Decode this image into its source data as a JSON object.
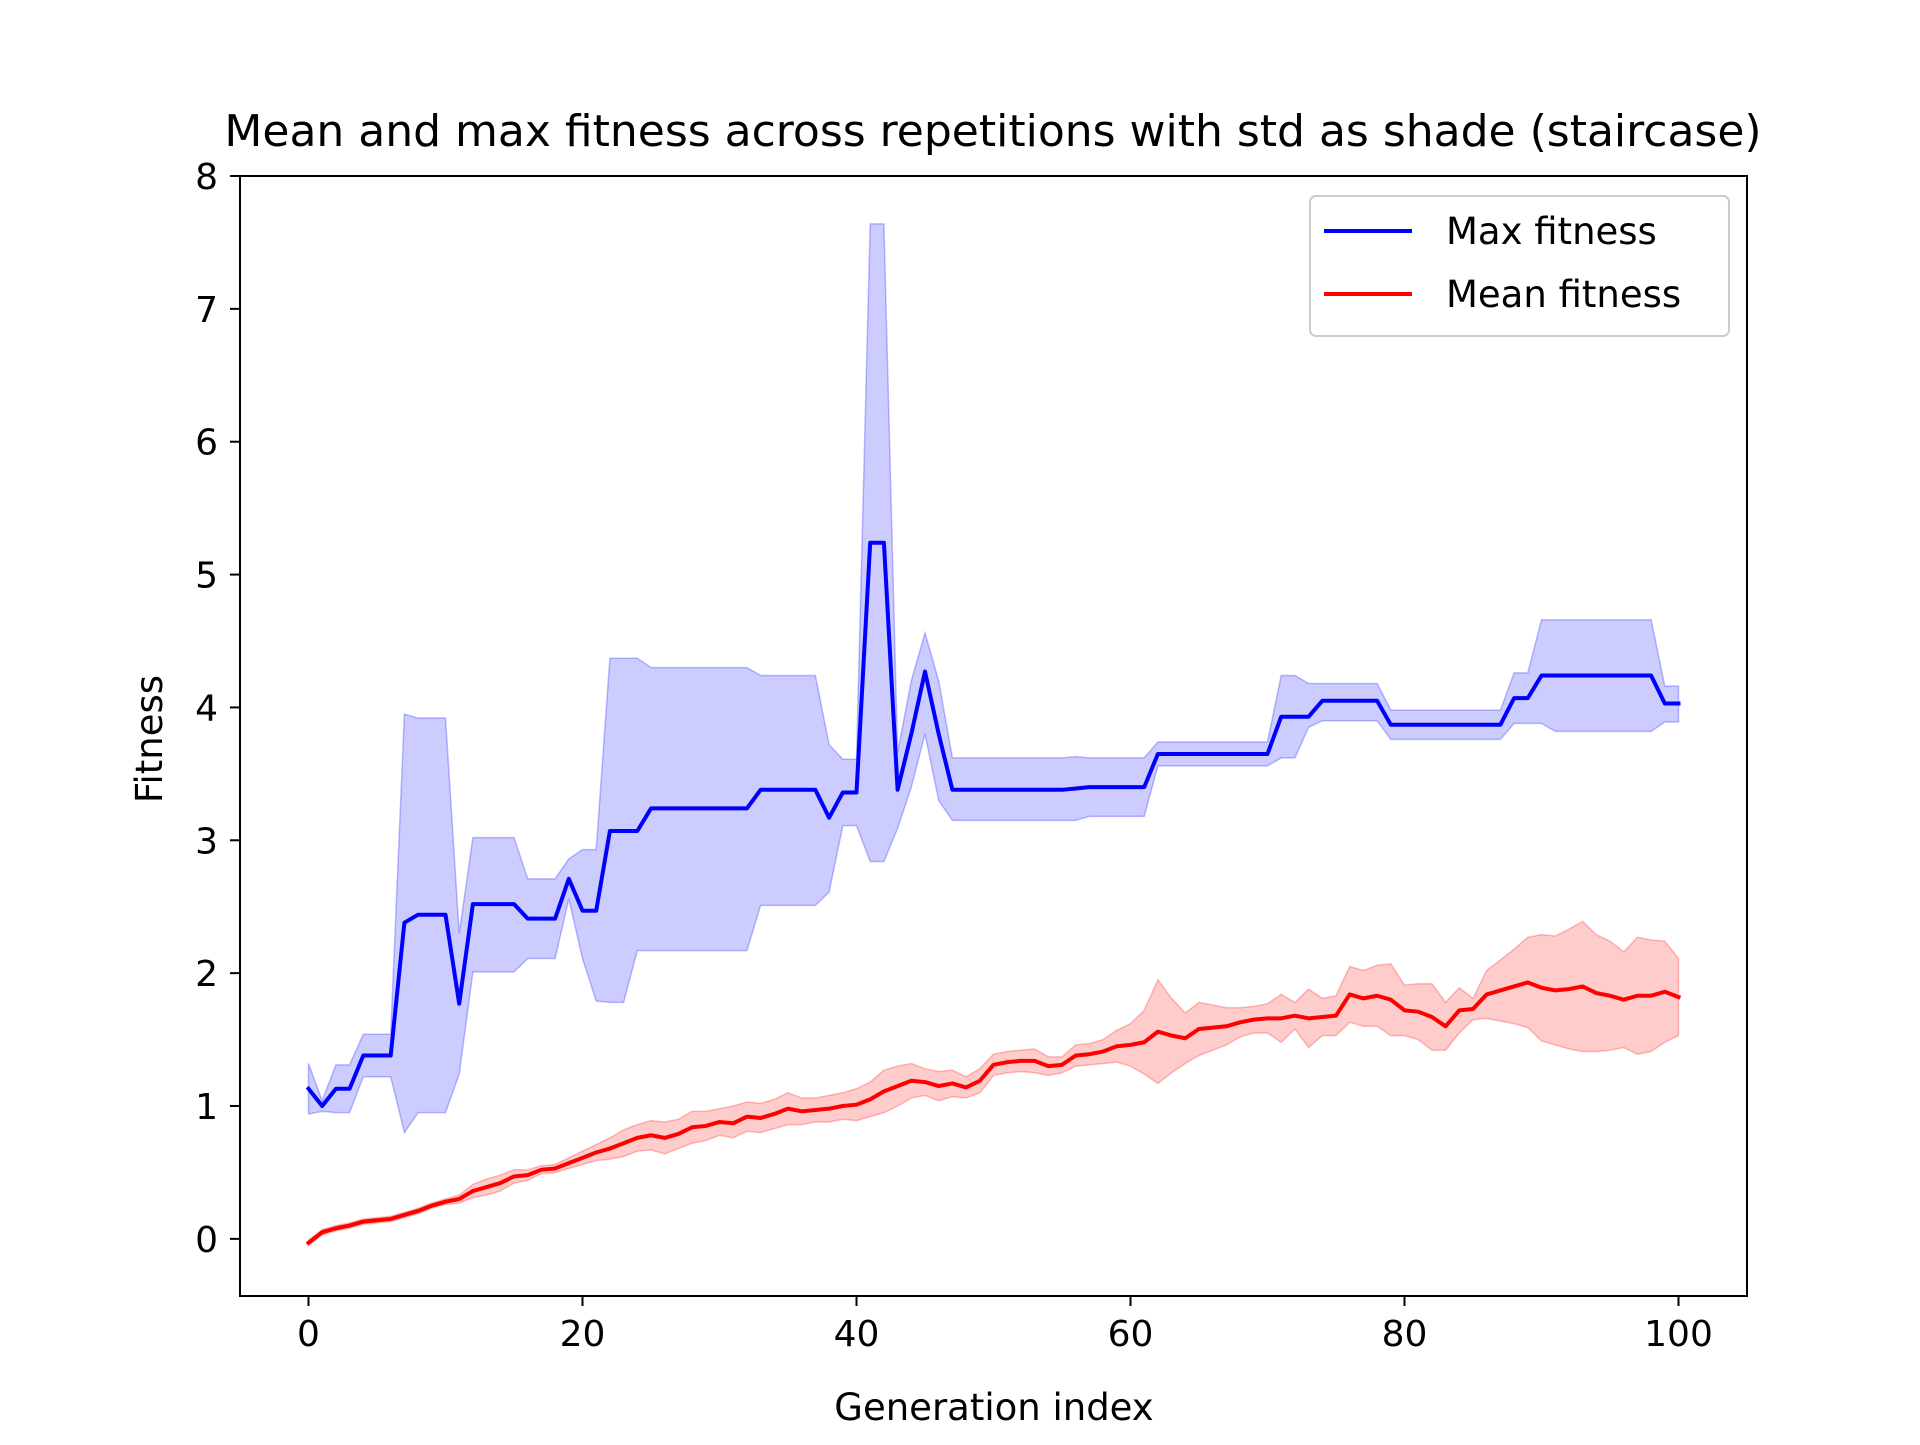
{
  "chart_data": {
    "type": "line",
    "title": "Mean and max fitness across repetitions with std as shade (staircase)",
    "xlabel": "Generation index",
    "ylabel": "Fitness",
    "xlim": [
      -5,
      105
    ],
    "ylim": [
      -0.43,
      8
    ],
    "x_ticks": [
      0,
      20,
      40,
      60,
      80,
      100
    ],
    "y_ticks": [
      0,
      1,
      2,
      3,
      4,
      5,
      6,
      7,
      8
    ],
    "grid": false,
    "legend_position": "upper right",
    "x": [
      0,
      1,
      2,
      3,
      4,
      5,
      6,
      7,
      8,
      9,
      10,
      11,
      12,
      13,
      14,
      15,
      16,
      17,
      18,
      19,
      20,
      21,
      22,
      23,
      24,
      25,
      26,
      27,
      28,
      29,
      30,
      31,
      32,
      33,
      34,
      35,
      36,
      37,
      38,
      39,
      40,
      41,
      42,
      43,
      44,
      45,
      46,
      47,
      48,
      49,
      50,
      51,
      52,
      53,
      54,
      55,
      56,
      57,
      58,
      59,
      60,
      61,
      62,
      63,
      64,
      65,
      66,
      67,
      68,
      69,
      70,
      71,
      72,
      73,
      74,
      75,
      76,
      77,
      78,
      79,
      80,
      81,
      82,
      83,
      84,
      85,
      86,
      87,
      88,
      89,
      90,
      91,
      92,
      93,
      94,
      95,
      96,
      97,
      98,
      99,
      100
    ],
    "series": [
      {
        "name": "Max fitness",
        "color": "#0000ff",
        "shade_color": "#0000ff",
        "values": [
          1.13,
          1.0,
          1.13,
          1.13,
          1.38,
          1.38,
          1.38,
          2.38,
          2.44,
          2.44,
          2.44,
          1.77,
          2.52,
          2.52,
          2.52,
          2.52,
          2.41,
          2.41,
          2.41,
          2.71,
          2.47,
          2.47,
          3.07,
          3.07,
          3.07,
          3.24,
          3.24,
          3.24,
          3.24,
          3.24,
          3.24,
          3.24,
          3.24,
          3.38,
          3.38,
          3.38,
          3.38,
          3.38,
          3.17,
          3.36,
          3.36,
          5.24,
          5.24,
          3.38,
          3.8,
          4.27,
          3.8,
          3.38,
          3.38,
          3.38,
          3.38,
          3.38,
          3.38,
          3.38,
          3.38,
          3.38,
          3.39,
          3.4,
          3.4,
          3.4,
          3.4,
          3.4,
          3.65,
          3.65,
          3.65,
          3.65,
          3.65,
          3.65,
          3.65,
          3.65,
          3.65,
          3.93,
          3.93,
          3.93,
          4.05,
          4.05,
          4.05,
          4.05,
          4.05,
          3.87,
          3.87,
          3.87,
          3.87,
          3.87,
          3.87,
          3.87,
          3.87,
          3.87,
          4.07,
          4.07,
          4.24,
          4.24,
          4.24,
          4.24,
          4.24,
          4.24,
          4.24,
          4.24,
          4.24,
          4.03,
          4.03
        ],
        "lower": [
          0.94,
          0.96,
          0.95,
          0.95,
          1.22,
          1.22,
          1.22,
          0.8,
          0.95,
          0.95,
          0.95,
          1.24,
          2.01,
          2.01,
          2.01,
          2.01,
          2.11,
          2.11,
          2.11,
          2.56,
          2.11,
          1.79,
          1.78,
          1.78,
          2.17,
          2.17,
          2.17,
          2.17,
          2.17,
          2.17,
          2.17,
          2.17,
          2.17,
          2.51,
          2.51,
          2.51,
          2.51,
          2.51,
          2.61,
          3.11,
          3.11,
          2.84,
          2.84,
          3.09,
          3.4,
          3.8,
          3.3,
          3.15,
          3.15,
          3.15,
          3.15,
          3.15,
          3.15,
          3.15,
          3.15,
          3.15,
          3.15,
          3.18,
          3.18,
          3.18,
          3.18,
          3.18,
          3.56,
          3.56,
          3.56,
          3.56,
          3.56,
          3.56,
          3.56,
          3.56,
          3.56,
          3.62,
          3.62,
          3.85,
          3.9,
          3.9,
          3.9,
          3.9,
          3.9,
          3.76,
          3.76,
          3.76,
          3.76,
          3.76,
          3.76,
          3.76,
          3.76,
          3.76,
          3.88,
          3.88,
          3.88,
          3.82,
          3.82,
          3.82,
          3.82,
          3.82,
          3.82,
          3.82,
          3.82,
          3.89,
          3.89
        ],
        "upper": [
          1.32,
          1.04,
          1.31,
          1.31,
          1.54,
          1.54,
          1.54,
          3.95,
          3.92,
          3.92,
          3.92,
          2.3,
          3.02,
          3.02,
          3.02,
          3.02,
          2.71,
          2.71,
          2.71,
          2.86,
          2.93,
          2.93,
          4.37,
          4.37,
          4.37,
          4.3,
          4.3,
          4.3,
          4.3,
          4.3,
          4.3,
          4.3,
          4.3,
          4.24,
          4.24,
          4.24,
          4.24,
          4.24,
          3.72,
          3.61,
          3.61,
          7.64,
          7.64,
          3.66,
          4.2,
          4.56,
          4.2,
          3.62,
          3.62,
          3.62,
          3.62,
          3.62,
          3.62,
          3.62,
          3.62,
          3.62,
          3.63,
          3.62,
          3.62,
          3.62,
          3.62,
          3.62,
          3.74,
          3.74,
          3.74,
          3.74,
          3.74,
          3.74,
          3.74,
          3.74,
          3.74,
          4.24,
          4.24,
          4.18,
          4.18,
          4.18,
          4.18,
          4.18,
          4.18,
          3.98,
          3.98,
          3.98,
          3.98,
          3.98,
          3.98,
          3.98,
          3.98,
          3.98,
          4.26,
          4.26,
          4.66,
          4.66,
          4.66,
          4.66,
          4.66,
          4.66,
          4.66,
          4.66,
          4.66,
          4.16,
          4.16
        ]
      },
      {
        "name": "Mean fitness",
        "color": "#ff0000",
        "shade_color": "#ff0000",
        "values": [
          -0.03,
          0.05,
          0.08,
          0.1,
          0.13,
          0.14,
          0.15,
          0.18,
          0.21,
          0.25,
          0.28,
          0.3,
          0.36,
          0.39,
          0.42,
          0.47,
          0.48,
          0.52,
          0.53,
          0.57,
          0.61,
          0.65,
          0.68,
          0.72,
          0.76,
          0.78,
          0.76,
          0.79,
          0.84,
          0.85,
          0.88,
          0.87,
          0.92,
          0.91,
          0.94,
          0.98,
          0.96,
          0.97,
          0.98,
          1.0,
          1.01,
          1.05,
          1.11,
          1.15,
          1.19,
          1.18,
          1.15,
          1.17,
          1.14,
          1.19,
          1.31,
          1.33,
          1.34,
          1.34,
          1.3,
          1.31,
          1.38,
          1.39,
          1.41,
          1.45,
          1.46,
          1.48,
          1.56,
          1.53,
          1.51,
          1.58,
          1.59,
          1.6,
          1.63,
          1.65,
          1.66,
          1.66,
          1.68,
          1.66,
          1.67,
          1.68,
          1.84,
          1.81,
          1.83,
          1.8,
          1.72,
          1.71,
          1.67,
          1.6,
          1.72,
          1.73,
          1.84,
          1.87,
          1.9,
          1.93,
          1.89,
          1.87,
          1.88,
          1.9,
          1.85,
          1.83,
          1.8,
          1.83,
          1.83,
          1.86,
          1.82
        ],
        "lower": [
          -0.05,
          0.03,
          0.06,
          0.08,
          0.11,
          0.12,
          0.13,
          0.16,
          0.19,
          0.23,
          0.26,
          0.27,
          0.31,
          0.33,
          0.36,
          0.42,
          0.44,
          0.49,
          0.5,
          0.53,
          0.56,
          0.59,
          0.6,
          0.62,
          0.66,
          0.67,
          0.64,
          0.68,
          0.72,
          0.74,
          0.78,
          0.76,
          0.81,
          0.8,
          0.83,
          0.86,
          0.86,
          0.88,
          0.88,
          0.9,
          0.89,
          0.92,
          0.95,
          1.0,
          1.06,
          1.08,
          1.04,
          1.07,
          1.06,
          1.1,
          1.23,
          1.25,
          1.26,
          1.25,
          1.23,
          1.25,
          1.3,
          1.31,
          1.32,
          1.33,
          1.3,
          1.24,
          1.17,
          1.25,
          1.32,
          1.38,
          1.42,
          1.46,
          1.52,
          1.55,
          1.55,
          1.48,
          1.58,
          1.44,
          1.53,
          1.53,
          1.63,
          1.6,
          1.6,
          1.53,
          1.53,
          1.5,
          1.42,
          1.42,
          1.55,
          1.65,
          1.66,
          1.64,
          1.62,
          1.59,
          1.49,
          1.46,
          1.43,
          1.41,
          1.41,
          1.42,
          1.44,
          1.39,
          1.41,
          1.48,
          1.53
        ],
        "upper": [
          -0.01,
          0.07,
          0.1,
          0.12,
          0.15,
          0.16,
          0.17,
          0.2,
          0.23,
          0.27,
          0.3,
          0.33,
          0.41,
          0.45,
          0.48,
          0.52,
          0.52,
          0.55,
          0.56,
          0.61,
          0.66,
          0.71,
          0.76,
          0.82,
          0.86,
          0.89,
          0.88,
          0.9,
          0.96,
          0.96,
          0.98,
          1.0,
          1.03,
          1.02,
          1.05,
          1.1,
          1.06,
          1.06,
          1.08,
          1.1,
          1.13,
          1.18,
          1.27,
          1.3,
          1.32,
          1.28,
          1.26,
          1.27,
          1.22,
          1.28,
          1.39,
          1.41,
          1.42,
          1.43,
          1.37,
          1.37,
          1.46,
          1.47,
          1.5,
          1.57,
          1.62,
          1.72,
          1.95,
          1.81,
          1.7,
          1.78,
          1.76,
          1.74,
          1.74,
          1.75,
          1.77,
          1.84,
          1.78,
          1.88,
          1.81,
          1.83,
          2.05,
          2.02,
          2.06,
          2.07,
          1.91,
          1.92,
          1.92,
          1.78,
          1.89,
          1.81,
          2.02,
          2.1,
          2.18,
          2.27,
          2.29,
          2.28,
          2.33,
          2.39,
          2.29,
          2.24,
          2.16,
          2.27,
          2.25,
          2.24,
          2.11
        ]
      }
    ]
  }
}
